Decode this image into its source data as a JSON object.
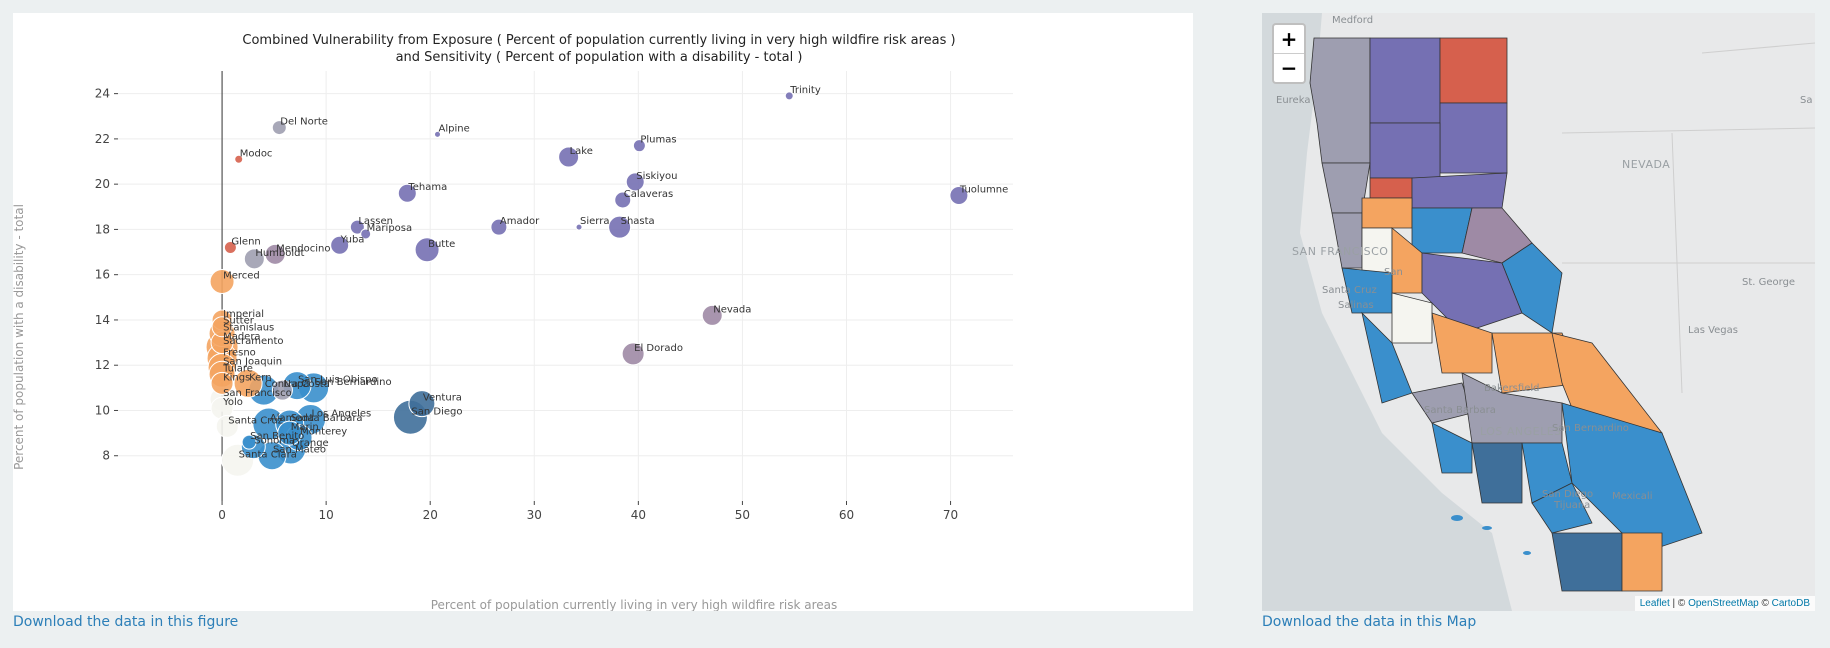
{
  "chart_data": {
    "type": "scatter",
    "title_line1": "Combined Vulnerability from Exposure ( Percent of population currently living in very high wildfire risk areas )",
    "title_line2": "and Sensitivity ( Percent of population with a disability - total )",
    "xlabel": "Percent of population currently living in very high wildfire risk areas",
    "ylabel": "Percent of population with a disability - total",
    "xlim": [
      -10,
      76
    ],
    "ylim": [
      6,
      25
    ],
    "xticks": [
      0,
      10,
      20,
      30,
      40,
      50,
      60,
      70
    ],
    "yticks": [
      8,
      10,
      12,
      14,
      16,
      18,
      20,
      22,
      24
    ],
    "grid": true,
    "colors": {
      "purple": "#7570b3",
      "red": "#d6604d",
      "gray": "#9e9eb0",
      "mauve": "#9e8aa5",
      "orange": "#f4a460",
      "blue": "#3a8fcc",
      "steel": "#3f6f9a",
      "white": "#f5f5f0"
    },
    "points": [
      {
        "name": "Trinity",
        "x": 54.5,
        "y": 23.9,
        "r": 4,
        "color": "purple"
      },
      {
        "name": "Del Norte",
        "x": 5.5,
        "y": 22.5,
        "r": 7,
        "color": "gray"
      },
      {
        "name": "Alpine",
        "x": 20.7,
        "y": 22.2,
        "r": 3,
        "color": "purple"
      },
      {
        "name": "Modoc",
        "x": 1.6,
        "y": 21.1,
        "r": 4,
        "color": "red"
      },
      {
        "name": "Lake",
        "x": 33.3,
        "y": 21.2,
        "r": 10,
        "color": "purple"
      },
      {
        "name": "Plumas",
        "x": 40.1,
        "y": 21.7,
        "r": 6,
        "color": "purple"
      },
      {
        "name": "Siskiyou",
        "x": 39.7,
        "y": 20.1,
        "r": 9,
        "color": "purple"
      },
      {
        "name": "Tehama",
        "x": 17.8,
        "y": 19.6,
        "r": 9,
        "color": "purple"
      },
      {
        "name": "Tuolumne",
        "x": 70.8,
        "y": 19.5,
        "r": 9,
        "color": "purple"
      },
      {
        "name": "Calaveras",
        "x": 38.5,
        "y": 19.3,
        "r": 8,
        "color": "purple"
      },
      {
        "name": "Lassen",
        "x": 13.0,
        "y": 18.1,
        "r": 7,
        "color": "purple"
      },
      {
        "name": "Mariposa",
        "x": 13.8,
        "y": 17.8,
        "r": 5,
        "color": "purple"
      },
      {
        "name": "Amador",
        "x": 26.6,
        "y": 18.1,
        "r": 8,
        "color": "purple"
      },
      {
        "name": "Sierra",
        "x": 34.3,
        "y": 18.1,
        "r": 3,
        "color": "purple"
      },
      {
        "name": "Shasta",
        "x": 38.2,
        "y": 18.1,
        "r": 11,
        "color": "purple"
      },
      {
        "name": "Yuba",
        "x": 11.3,
        "y": 17.3,
        "r": 9,
        "color": "purple"
      },
      {
        "name": "Butte",
        "x": 19.7,
        "y": 17.1,
        "r": 12,
        "color": "purple"
      },
      {
        "name": "Glenn",
        "x": 0.8,
        "y": 17.2,
        "r": 6,
        "color": "red"
      },
      {
        "name": "Mendocino",
        "x": 5.1,
        "y": 16.9,
        "r": 10,
        "color": "mauve"
      },
      {
        "name": "Humboldt",
        "x": 3.1,
        "y": 16.7,
        "r": 10,
        "color": "gray"
      },
      {
        "name": "Merced",
        "x": 0.0,
        "y": 15.7,
        "r": 12,
        "color": "orange"
      },
      {
        "name": "Nevada",
        "x": 47.1,
        "y": 14.2,
        "r": 10,
        "color": "mauve"
      },
      {
        "name": "El Dorado",
        "x": 39.5,
        "y": 12.5,
        "r": 11,
        "color": "mauve"
      },
      {
        "name": "Imperial",
        "x": 0.0,
        "y": 14.0,
        "r": 10,
        "color": "orange"
      },
      {
        "name": "Sutter",
        "x": 0.0,
        "y": 13.7,
        "r": 10,
        "color": "orange"
      },
      {
        "name": "Stanislaus",
        "x": 0.0,
        "y": 13.4,
        "r": 13,
        "color": "orange"
      },
      {
        "name": "Madera",
        "x": 0.0,
        "y": 13.0,
        "r": 11,
        "color": "orange"
      },
      {
        "name": "Sacramento",
        "x": 0.0,
        "y": 12.8,
        "r": 16,
        "color": "orange"
      },
      {
        "name": "Fresno",
        "x": 0.0,
        "y": 12.3,
        "r": 15,
        "color": "orange"
      },
      {
        "name": "San Joaquin",
        "x": 0.0,
        "y": 11.9,
        "r": 14,
        "color": "orange"
      },
      {
        "name": "Tulare",
        "x": 0.0,
        "y": 11.6,
        "r": 13,
        "color": "orange"
      },
      {
        "name": "Kings",
        "x": 0.0,
        "y": 11.2,
        "r": 11,
        "color": "orange"
      },
      {
        "name": "Kern",
        "x": 2.5,
        "y": 11.2,
        "r": 14,
        "color": "orange"
      },
      {
        "name": "Contra Costa",
        "x": 4.0,
        "y": 10.9,
        "r": 15,
        "color": "blue"
      },
      {
        "name": "Napa",
        "x": 5.8,
        "y": 10.9,
        "r": 10,
        "color": "gray"
      },
      {
        "name": "San Luis Obispo",
        "x": 7.2,
        "y": 11.1,
        "r": 14,
        "color": "blue"
      },
      {
        "name": "San Bernardino",
        "x": 8.8,
        "y": 11.0,
        "r": 15,
        "color": "blue"
      },
      {
        "name": "San Francisco",
        "x": 0.0,
        "y": 10.5,
        "r": 12,
        "color": "white"
      },
      {
        "name": "Yolo",
        "x": 0.0,
        "y": 10.1,
        "r": 11,
        "color": "white"
      },
      {
        "name": "Ventura",
        "x": 19.2,
        "y": 10.3,
        "r": 13,
        "color": "steel"
      },
      {
        "name": "San Diego",
        "x": 18.1,
        "y": 9.7,
        "r": 17,
        "color": "steel"
      },
      {
        "name": "Santa Cruz",
        "x": 0.5,
        "y": 9.3,
        "r": 11,
        "color": "white"
      },
      {
        "name": "Alameda",
        "x": 4.5,
        "y": 9.4,
        "r": 16,
        "color": "blue"
      },
      {
        "name": "Santa Barbara",
        "x": 6.5,
        "y": 9.4,
        "r": 14,
        "color": "blue"
      },
      {
        "name": "Los Angeles",
        "x": 8.5,
        "y": 9.6,
        "r": 15,
        "color": "blue"
      },
      {
        "name": "Marin",
        "x": 6.5,
        "y": 9.0,
        "r": 12,
        "color": "blue"
      },
      {
        "name": "Monterey",
        "x": 7.4,
        "y": 8.8,
        "r": 13,
        "color": "blue"
      },
      {
        "name": "San Benito",
        "x": 2.6,
        "y": 8.6,
        "r": 7,
        "color": "blue"
      },
      {
        "name": "Sonoma",
        "x": 3.0,
        "y": 8.4,
        "r": 12,
        "color": "blue"
      },
      {
        "name": "Orange",
        "x": 6.6,
        "y": 8.3,
        "r": 15,
        "color": "blue"
      },
      {
        "name": "San Mateo",
        "x": 4.8,
        "y": 8.0,
        "r": 14,
        "color": "blue"
      },
      {
        "name": "Santa Clara",
        "x": 1.5,
        "y": 7.8,
        "r": 16,
        "color": "white"
      }
    ]
  },
  "links": {
    "figure": "Download the data in this figure",
    "map": "Download the data in this Map"
  },
  "map": {
    "zoom_in": "+",
    "zoom_out": "−",
    "attribution": {
      "leaflet": "Leaflet",
      "sep1": " | © ",
      "osm": "OpenStreetMap",
      "sep2": " © ",
      "carto": "CartoDB"
    },
    "labels": {
      "medford": "Medford",
      "eureka": "Eureka",
      "nevada": "NEVADA",
      "sf": "SAN FRANCISCO",
      "san": "San",
      "santa_cruz": "Santa Cruz",
      "salinas": "Salinas",
      "st_george": "St. George",
      "vegas": "Las Vegas",
      "bakersfield": "Bakersfield",
      "santa_barbara": "Santa Barbara",
      "los_angeles": "LOS ANGELES",
      "san_bernardino": "San Bernardino",
      "san_diego": "San Diego",
      "tijuana": "Tijuana",
      "mexicali": "Mexicali",
      "sa": "Sa"
    }
  }
}
